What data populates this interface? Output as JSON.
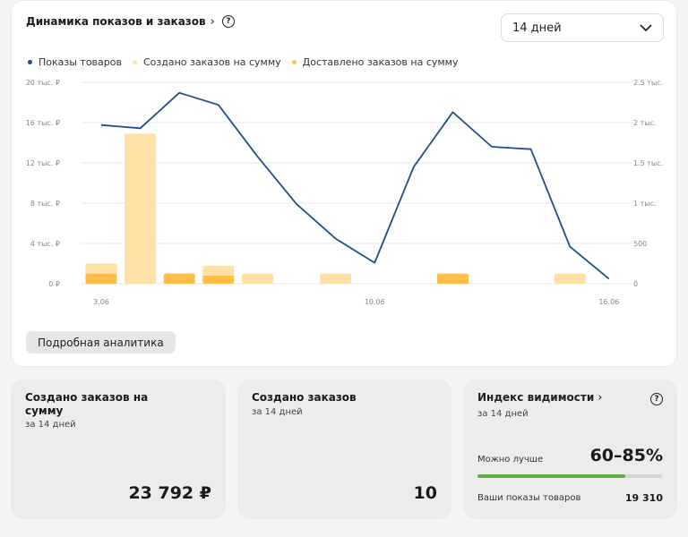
{
  "chart_card": {
    "title": "Динамика показов и заказов",
    "period": "14 дней",
    "legend": [
      {
        "label": "Показы товаров",
        "color": "#1f4e8c"
      },
      {
        "label": "Создано заказов на сумму",
        "color": "#ffe0a6"
      },
      {
        "label": "Доставлено заказов на сумму",
        "color": "#ffbd4a"
      }
    ],
    "analytics_button": "Подробная аналитика"
  },
  "chart_data": {
    "type": "bar",
    "x_tick_labels": [
      "3.06",
      "10.06",
      "16.06"
    ],
    "y_left_ticks": [
      "0 ₽",
      "4 тыс. ₽",
      "8 тыс. ₽",
      "12 тыс. ₽",
      "16 тыс. ₽",
      "20 тыс. ₽"
    ],
    "y_left_range": [
      0,
      20000
    ],
    "y_right_ticks": [
      "0",
      "500",
      "1 тыс.",
      "1.5 тыс.",
      "2 тыс.",
      "2.5 тыс."
    ],
    "y_right_range": [
      0,
      2500
    ],
    "grid": true,
    "series": [
      {
        "name": "Создано заказов на сумму",
        "kind": "bar",
        "axis": "left",
        "color": "#ffe0a6",
        "values": [
          2000,
          14900,
          1000,
          1800,
          1000,
          0,
          1000,
          0,
          0,
          1000,
          0,
          0,
          1000,
          0
        ]
      },
      {
        "name": "Доставлено заказов на сумму",
        "kind": "bar",
        "axis": "left",
        "color": "#ffbd4a",
        "values": [
          1000,
          0,
          1000,
          800,
          0,
          0,
          0,
          0,
          0,
          1000,
          0,
          0,
          0,
          0
        ]
      },
      {
        "name": "Показы товаров",
        "kind": "line",
        "axis": "right",
        "color": "#1f4e8c",
        "values": [
          1970,
          1930,
          2370,
          2220,
          1580,
          990,
          560,
          260,
          1450,
          2130,
          1700,
          1670,
          460,
          60
        ]
      }
    ]
  },
  "stats": {
    "orders_sum": {
      "title": "Создано заказов на сумму",
      "period": "за 14 дней",
      "value": "23 792 ₽"
    },
    "orders_count": {
      "title": "Создано заказов",
      "period": "за 14 дней",
      "value": "10"
    },
    "visibility": {
      "title": "Индекс видимости",
      "period": "за 14 дней",
      "status_label": "Можно лучше",
      "range": "60–85%",
      "progress": 0.8,
      "progress_color": "#5fae3f",
      "shows_label": "Ваши показы товаров",
      "shows_value": "19 310"
    }
  }
}
